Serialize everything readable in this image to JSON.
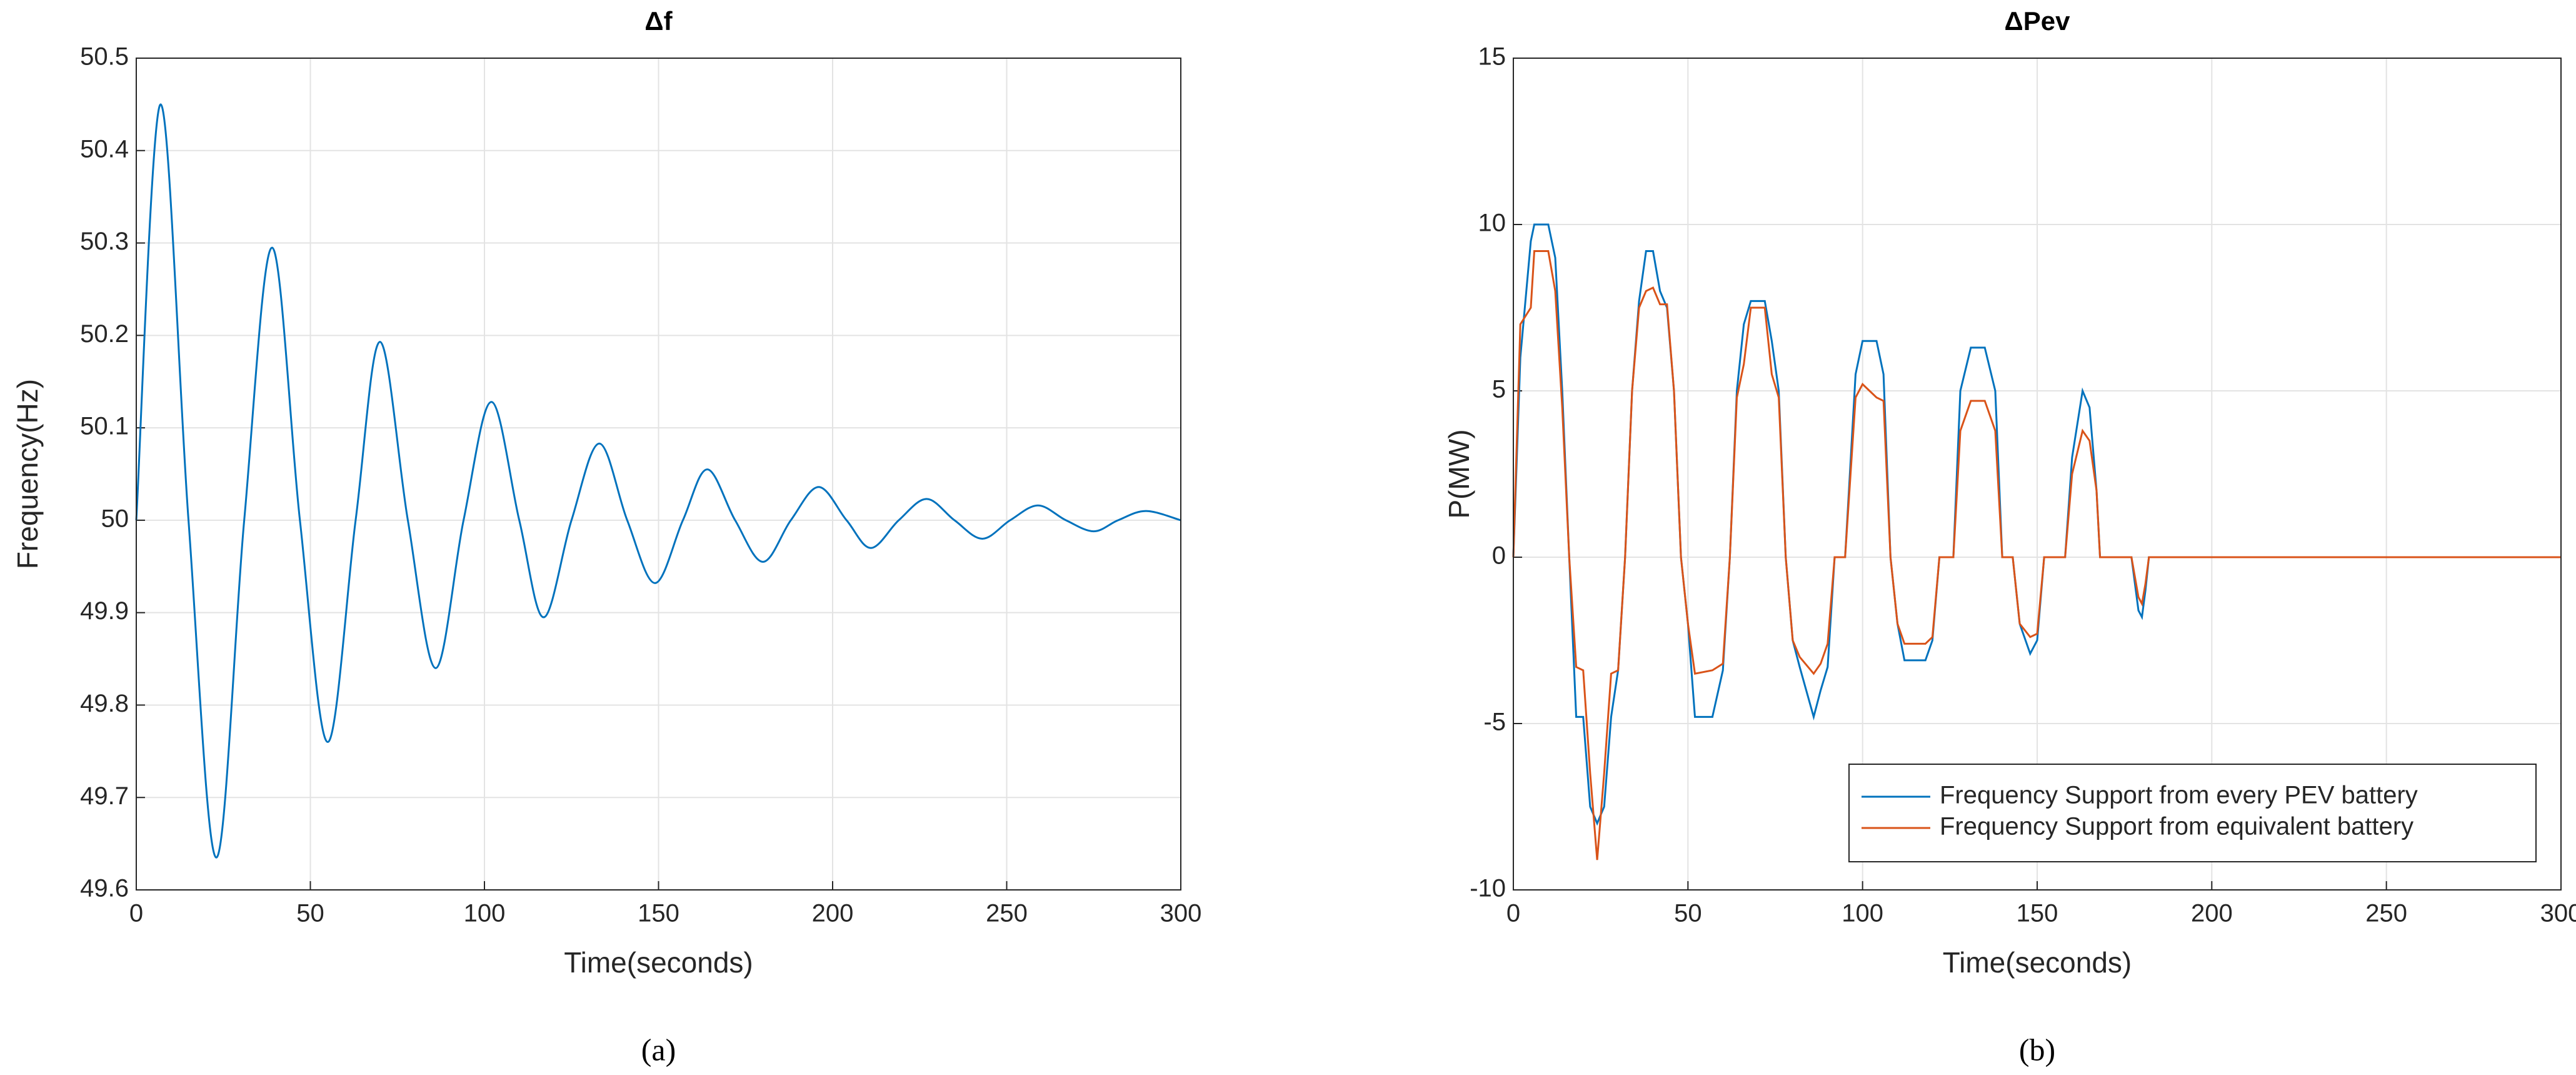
{
  "chart_data": [
    {
      "type": "line",
      "title": "Δf",
      "xlabel": "Time(seconds)",
      "ylabel": "Frequency(Hz)",
      "caption": "(a)",
      "x": [
        0,
        7,
        15,
        23,
        31,
        39,
        47,
        55,
        63,
        70,
        78,
        86,
        94,
        102,
        110,
        117,
        125,
        133,
        141,
        149,
        157,
        164,
        172,
        180,
        188,
        196,
        204,
        211,
        219,
        227,
        235,
        243,
        251,
        259,
        267,
        275,
        282,
        290,
        300
      ],
      "series": [
        {
          "color": "#0072BD",
          "values": [
            50,
            50.45,
            50,
            49.635,
            50,
            50.295,
            50,
            49.76,
            50,
            50.193,
            50,
            49.84,
            50,
            50.128,
            50,
            49.895,
            50,
            50.083,
            50,
            49.932,
            50,
            50.055,
            50,
            49.955,
            50,
            50.036,
            50,
            49.97,
            50,
            50.023,
            50,
            49.98,
            50,
            50.016,
            50,
            49.988,
            50,
            50.01,
            50
          ]
        }
      ],
      "xlim": [
        0,
        300
      ],
      "ylim": [
        49.6,
        50.5
      ],
      "xticks": [
        0,
        50,
        100,
        150,
        200,
        250,
        300
      ],
      "yticks": [
        49.6,
        49.7,
        49.8,
        49.9,
        50,
        50.1,
        50.2,
        50.3,
        50.4,
        50.5
      ],
      "grid": true,
      "smooth": true
    },
    {
      "type": "line",
      "title": "ΔPev",
      "xlabel": "Time(seconds)",
      "ylabel": "P(MW)",
      "caption": "(b)",
      "x": [
        0,
        2,
        5,
        6,
        10,
        12,
        14,
        16,
        18,
        20,
        22,
        24,
        26,
        28,
        30,
        32,
        34,
        36,
        38,
        40,
        42,
        44,
        46,
        48,
        50,
        52,
        57,
        60,
        62,
        64,
        66,
        68,
        72,
        74,
        76,
        78,
        80,
        82,
        86,
        88,
        90,
        92,
        95,
        98,
        100,
        104,
        106,
        108,
        110,
        112,
        118,
        120,
        122,
        126,
        128,
        131,
        135,
        138,
        140,
        143,
        145,
        148,
        150,
        152,
        158,
        160,
        163,
        165,
        167,
        168,
        177,
        179,
        180,
        181,
        182,
        300
      ],
      "series": [
        {
          "name": "Frequency Support from every PEV battery",
          "color": "#0072BD",
          "values": [
            0,
            6,
            9.5,
            10,
            10,
            9,
            5,
            0,
            -4.8,
            -4.8,
            -7.5,
            -8,
            -7.5,
            -4.8,
            -3.4,
            0,
            5,
            7.7,
            9.2,
            9.2,
            8,
            7.5,
            5,
            0,
            -2,
            -4.8,
            -4.8,
            -3.4,
            0,
            5,
            7,
            7.7,
            7.7,
            6.5,
            5,
            0,
            -2.5,
            -3.3,
            -4.8,
            -4,
            -3.3,
            0,
            0,
            5.5,
            6.5,
            6.5,
            5.5,
            0,
            -2,
            -3.1,
            -3.1,
            -2.5,
            0,
            0,
            5,
            6.3,
            6.3,
            5,
            0,
            0,
            -2,
            -2.9,
            -2.5,
            0,
            0,
            3,
            5,
            4.5,
            2,
            0,
            0,
            -1.6,
            -1.8,
            -1,
            0,
            0
          ]
        },
        {
          "name": "Frequency Support from equivalent battery",
          "color": "#D95319",
          "values": [
            0,
            7,
            7.5,
            9.2,
            9.2,
            8,
            4.5,
            0,
            -3.3,
            -3.4,
            -6.5,
            -9.1,
            -6.5,
            -3.5,
            -3.4,
            0,
            5,
            7.5,
            8,
            8.1,
            7.6,
            7.6,
            5,
            0,
            -2,
            -3.5,
            -3.4,
            -3.2,
            0,
            4.8,
            5.8,
            7.5,
            7.5,
            5.5,
            4.8,
            0,
            -2.5,
            -3,
            -3.5,
            -3.2,
            -2.6,
            0,
            0,
            4.8,
            5.2,
            4.8,
            4.7,
            0,
            -2,
            -2.6,
            -2.6,
            -2.4,
            0,
            0,
            3.8,
            4.7,
            4.7,
            3.8,
            0,
            0,
            -2,
            -2.4,
            -2.3,
            0,
            0,
            2.5,
            3.8,
            3.5,
            2,
            0,
            0,
            -1.2,
            -1.4,
            -0.8,
            0,
            0
          ]
        }
      ],
      "xlim": [
        0,
        300
      ],
      "ylim": [
        -10,
        15
      ],
      "xticks": [
        0,
        50,
        100,
        150,
        200,
        250,
        300
      ],
      "yticks": [
        -10,
        -5,
        0,
        5,
        10,
        15
      ],
      "grid": true,
      "legend": "lower-right",
      "smooth": false
    }
  ]
}
